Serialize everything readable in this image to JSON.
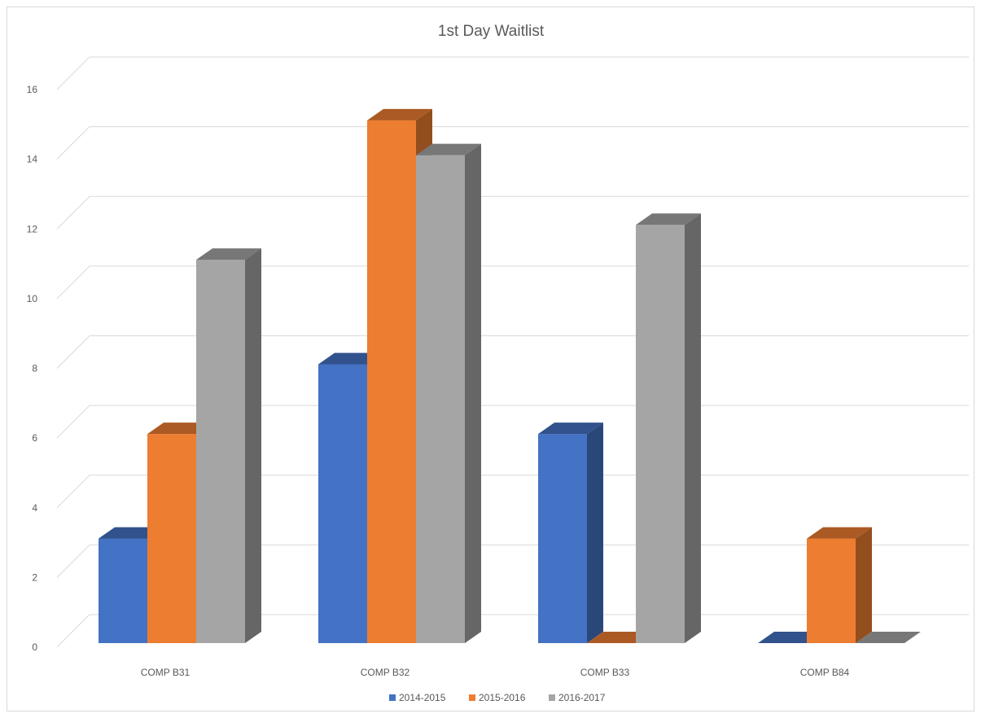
{
  "chart_data": {
    "type": "bar",
    "title": "1st Day Waitlist",
    "categories": [
      "COMP B31",
      "COMP B32",
      "COMP B33",
      "COMP B84"
    ],
    "series": [
      {
        "name": "2014-2015",
        "values": [
          3,
          8,
          6,
          0
        ],
        "color": "#4472c4"
      },
      {
        "name": "2015-2016",
        "values": [
          6,
          15,
          0,
          3
        ],
        "color": "#ed7d31"
      },
      {
        "name": "2016-2017",
        "values": [
          11,
          14,
          12,
          0
        ],
        "color": "#a5a5a5"
      }
    ],
    "yticks": [
      "0",
      "2",
      "4",
      "6",
      "8",
      "10",
      "12",
      "14",
      "16"
    ],
    "ylim": [
      0,
      16
    ],
    "grid": true,
    "legend_position": "bottom",
    "style": "3d-clustered-column"
  }
}
